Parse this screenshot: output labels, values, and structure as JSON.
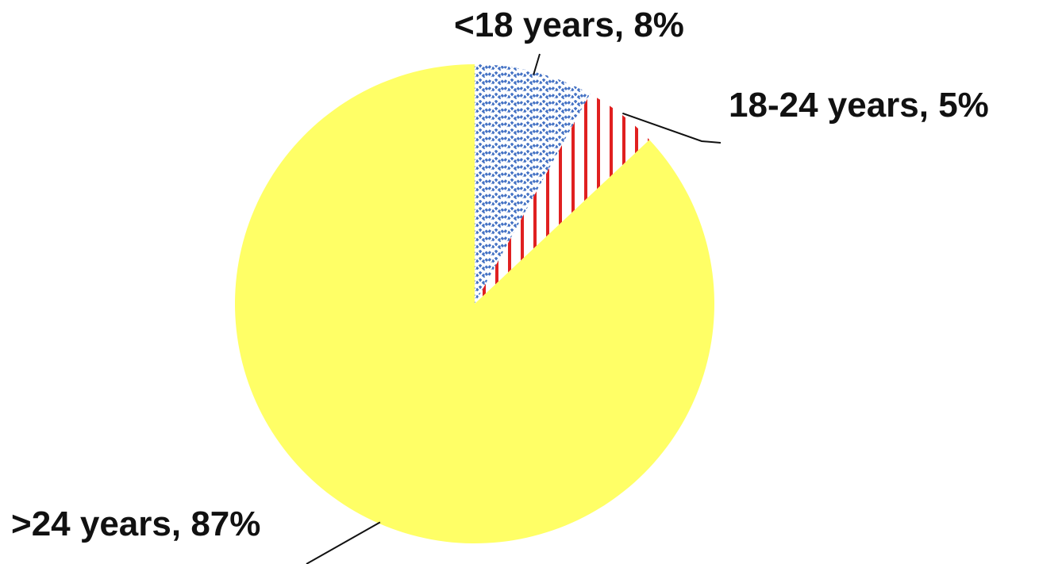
{
  "chart_data": {
    "type": "pie",
    "title": "",
    "slices": [
      {
        "label": "<18 years",
        "value": 8,
        "display": "<18 years, 8%",
        "color": "#4472c4",
        "pattern": "dotted-zigzag"
      },
      {
        "label": "18-24 years",
        "value": 5,
        "display": "18-24 years, 5%",
        "color": "#e02020",
        "pattern": "vertical-stripes"
      },
      {
        "label": ">24 years",
        "value": 87,
        "display": ">24 years, 87%",
        "color": "#ffff66",
        "pattern": "solid"
      }
    ],
    "start_angle_deg": 0,
    "direction": "clockwise",
    "legend": "none",
    "labels": "outside-with-leader-lines"
  }
}
